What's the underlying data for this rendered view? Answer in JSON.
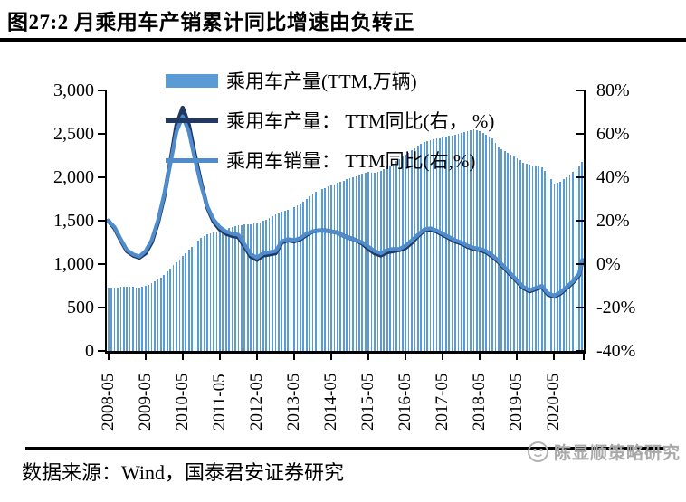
{
  "page": {
    "title": "图27:2 月乘用车产销累计同比增速由负转正",
    "source_note": "数据来源：Wind，国泰君安证券研究",
    "watermark": "陈显顺策略研究"
  },
  "legend": [
    {
      "label": "乘用车产量(TTM,万辆)",
      "swatch": "bar",
      "color": "#5B9BD5"
    },
    {
      "label": "乘用车产量： TTM同比(右， %)",
      "swatch": "line",
      "color": "#1F3864"
    },
    {
      "label": "乘用车销量： TTM同比(右,%)",
      "swatch": "line",
      "color": "#4F8CCB"
    }
  ],
  "chart_data": {
    "type": "bar+line",
    "x_start": "2008-05",
    "x_end": "2021-02",
    "x_tick_labels": [
      "2008-05",
      "2009-05",
      "2010-05",
      "2011-05",
      "2012-05",
      "2013-05",
      "2014-05",
      "2015-05",
      "2016-05",
      "2017-05",
      "2018-05",
      "2019-05",
      "2020-05"
    ],
    "left_axis": {
      "min": 0,
      "max": 3000,
      "step": 500,
      "tick_labels": [
        "0",
        "500",
        "1,000",
        "1,500",
        "2,000",
        "2,500",
        "3,000"
      ],
      "series": "乘用车产量(TTM,万辆)"
    },
    "right_axis": {
      "min": -40,
      "max": 80,
      "step": 20,
      "tick_labels": [
        "-40%",
        "-20%",
        "0%",
        "20%",
        "40%",
        "60%",
        "80%"
      ],
      "series": [
        "乘用车产量：TTM同比(右，%)",
        "乘用车销量：TTM同比(右,%)"
      ]
    },
    "bar_color": "#5B9BD5",
    "production_line_color": "#1F3864",
    "sales_line_color": "#4F8CCB",
    "legend_position": "top-left-overlay",
    "grid": false,
    "monthly_anchors_columns": [
      "month",
      "production_ttm_wan",
      "production_yoy_pct",
      "sales_yoy_pct"
    ],
    "monthly_anchors": [
      [
        "2008-05",
        730,
        20,
        20
      ],
      [
        "2008-07",
        733,
        16.5,
        17
      ],
      [
        "2008-09",
        736,
        11,
        11.5
      ],
      [
        "2008-11",
        738,
        6,
        6.5
      ],
      [
        "2009-01",
        735,
        4,
        4.5
      ],
      [
        "2009-03",
        733,
        3,
        3.5
      ],
      [
        "2009-05",
        745,
        5,
        6
      ],
      [
        "2009-07",
        780,
        10,
        11
      ],
      [
        "2009-09",
        820,
        19,
        20
      ],
      [
        "2009-11",
        875,
        31,
        32
      ],
      [
        "2010-01",
        950,
        47,
        46
      ],
      [
        "2010-03",
        1020,
        64,
        61
      ],
      [
        "2010-05",
        1090,
        72,
        68
      ],
      [
        "2010-07",
        1165,
        64,
        61
      ],
      [
        "2010-09",
        1235,
        50,
        48
      ],
      [
        "2010-11",
        1300,
        37,
        36
      ],
      [
        "2011-01",
        1345,
        26,
        26.5
      ],
      [
        "2011-03",
        1365,
        19.5,
        20.5
      ],
      [
        "2011-05",
        1380,
        16,
        17
      ],
      [
        "2011-07",
        1400,
        14,
        15
      ],
      [
        "2011-09",
        1425,
        13,
        14
      ],
      [
        "2011-11",
        1450,
        12.5,
        13.5
      ],
      [
        "2012-01",
        1455,
        8,
        9
      ],
      [
        "2012-03",
        1460,
        3.5,
        4.5
      ],
      [
        "2012-05",
        1470,
        2,
        3
      ],
      [
        "2012-07",
        1495,
        4,
        5
      ],
      [
        "2012-09",
        1530,
        4.5,
        5.5
      ],
      [
        "2012-11",
        1570,
        5,
        6
      ],
      [
        "2013-01",
        1600,
        10,
        10.5
      ],
      [
        "2013-03",
        1630,
        11,
        11.5
      ],
      [
        "2013-05",
        1660,
        10.5,
        11
      ],
      [
        "2013-07",
        1700,
        11.5,
        12
      ],
      [
        "2013-09",
        1745,
        13.5,
        14
      ],
      [
        "2013-11",
        1810,
        15,
        15
      ],
      [
        "2014-01",
        1850,
        15.5,
        15.5
      ],
      [
        "2014-03",
        1880,
        15.5,
        15.5
      ],
      [
        "2014-05",
        1905,
        15,
        15
      ],
      [
        "2014-07",
        1935,
        14.5,
        14.5
      ],
      [
        "2014-09",
        1960,
        13,
        13
      ],
      [
        "2014-11",
        1990,
        12,
        12
      ],
      [
        "2015-01",
        2010,
        11,
        11
      ],
      [
        "2015-03",
        2040,
        9.5,
        10
      ],
      [
        "2015-05",
        2060,
        7,
        8
      ],
      [
        "2015-07",
        2050,
        5,
        6
      ],
      [
        "2015-09",
        2070,
        4,
        5
      ],
      [
        "2015-11",
        2120,
        5.5,
        6.5
      ],
      [
        "2016-01",
        2160,
        6,
        7
      ],
      [
        "2016-03",
        2210,
        6.5,
        7
      ],
      [
        "2016-05",
        2260,
        7.5,
        8.5
      ],
      [
        "2016-07",
        2310,
        10,
        11
      ],
      [
        "2016-09",
        2360,
        13,
        13.5
      ],
      [
        "2016-11",
        2410,
        15.5,
        16
      ],
      [
        "2017-01",
        2430,
        16,
        16.5
      ],
      [
        "2017-03",
        2445,
        15,
        15.5
      ],
      [
        "2017-05",
        2460,
        13.5,
        14
      ],
      [
        "2017-07",
        2475,
        12,
        12.5
      ],
      [
        "2017-09",
        2490,
        10.5,
        11
      ],
      [
        "2017-11",
        2510,
        9.5,
        10
      ],
      [
        "2018-01",
        2530,
        8,
        8.5
      ],
      [
        "2018-03",
        2550,
        7,
        7.5
      ],
      [
        "2018-05",
        2530,
        6.5,
        7
      ],
      [
        "2018-07",
        2490,
        5.5,
        6
      ],
      [
        "2018-09",
        2450,
        3.5,
        4
      ],
      [
        "2018-11",
        2350,
        1,
        1.5
      ],
      [
        "2019-01",
        2300,
        -2,
        -1.5
      ],
      [
        "2019-03",
        2260,
        -5,
        -4.5
      ],
      [
        "2019-05",
        2220,
        -8,
        -7.5
      ],
      [
        "2019-07",
        2170,
        -11,
        -10.5
      ],
      [
        "2019-09",
        2150,
        -12.5,
        -12
      ],
      [
        "2019-11",
        2130,
        -11.5,
        -11
      ],
      [
        "2020-01",
        2110,
        -10.5,
        -10
      ],
      [
        "2020-03",
        2030,
        -14,
        -13.5
      ],
      [
        "2020-05",
        1930,
        -15,
        -14.5
      ],
      [
        "2020-07",
        1950,
        -13.5,
        -13
      ],
      [
        "2020-09",
        2000,
        -11,
        -10.5
      ],
      [
        "2020-11",
        2060,
        -8.5,
        -8
      ],
      [
        "2021-01",
        2120,
        -5,
        -4.5
      ],
      [
        "2021-02",
        2180,
        1.5,
        2
      ]
    ]
  }
}
